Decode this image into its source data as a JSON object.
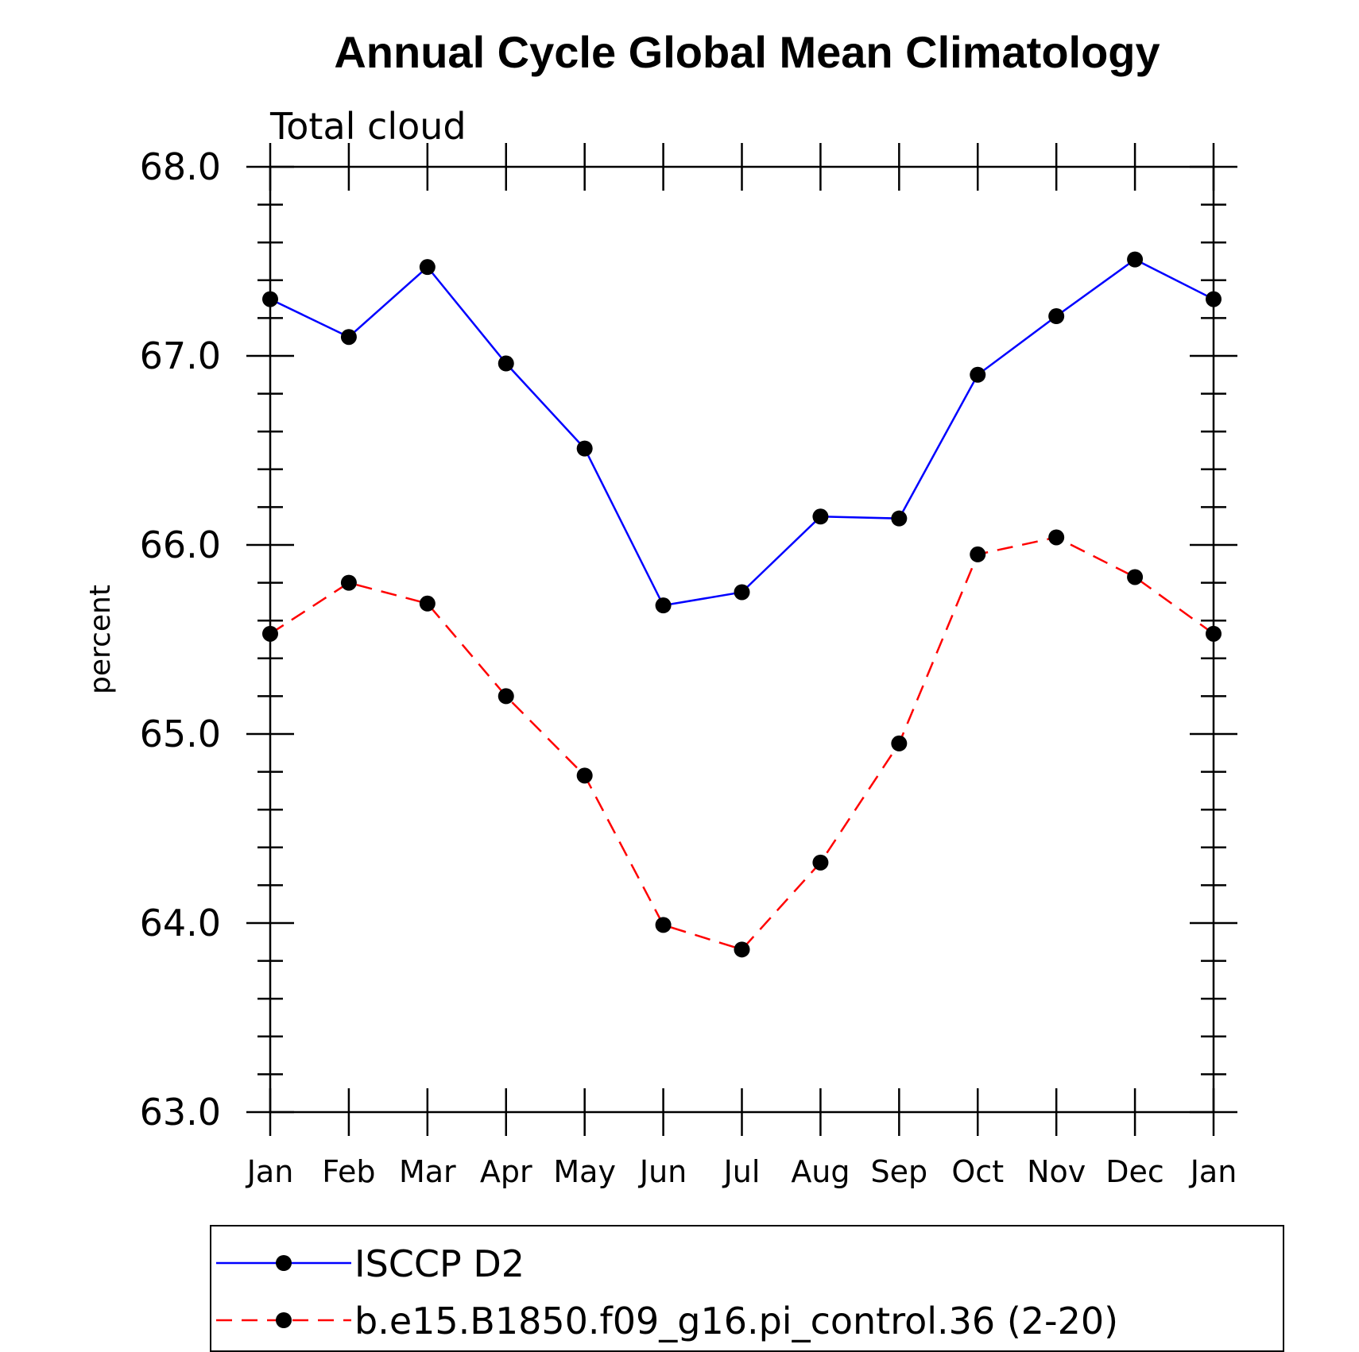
{
  "chart_data": {
    "type": "line",
    "title": "Annual Cycle Global Mean Climatology",
    "subtitle": "Total cloud",
    "ylabel": "percent",
    "xlabel": "",
    "categories": [
      "Jan",
      "Feb",
      "Mar",
      "Apr",
      "May",
      "Jun",
      "Jul",
      "Aug",
      "Sep",
      "Oct",
      "Nov",
      "Dec",
      "Jan"
    ],
    "ylim": [
      63.0,
      68.0
    ],
    "yticks": [
      "63.0",
      "64.0",
      "65.0",
      "66.0",
      "67.0",
      "68.0"
    ],
    "series": [
      {
        "name": "ISCCP D2",
        "color": "#0000ff",
        "dash": "solid",
        "values": [
          67.3,
          67.1,
          67.47,
          66.96,
          66.51,
          65.68,
          65.75,
          66.15,
          66.14,
          66.9,
          67.21,
          67.51,
          67.3
        ]
      },
      {
        "name": "b.e15.B1850.f09_g16.pi_control.36 (2-20)",
        "color": "#ff0000",
        "dash": "dashed",
        "values": [
          65.53,
          65.8,
          65.69,
          65.2,
          64.78,
          63.99,
          63.86,
          64.32,
          64.95,
          65.95,
          66.04,
          65.83,
          65.53
        ]
      }
    ],
    "marker": "filled-circle",
    "marker_color": "#000000",
    "grid": false,
    "legend": "bottom"
  }
}
